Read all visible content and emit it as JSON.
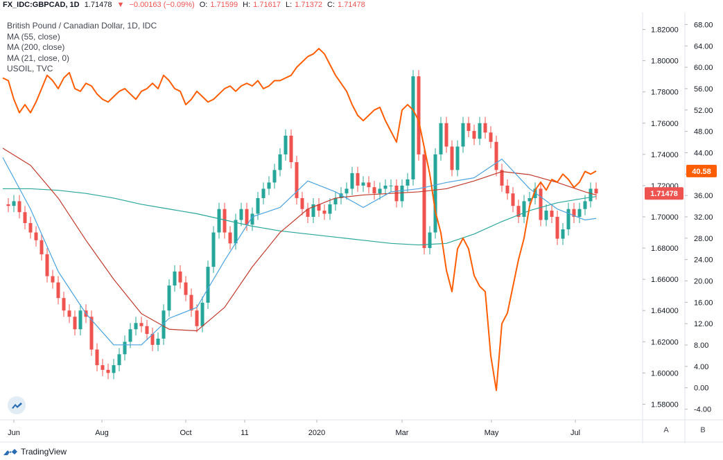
{
  "header": {
    "symbol": "FX_IDC:GBPCAD, 1D",
    "last": "1.71478",
    "arrow": "▼",
    "change": "−0.00163 (−0.09%)",
    "o_label": "O:",
    "o_val": "1.71599",
    "h_label": "H:",
    "h_val": "1.71617",
    "l_label": "L:",
    "l_val": "1.71372",
    "c_label": "C:",
    "c_val": "1.71478"
  },
  "legend": {
    "title": "British Pound / Canadian Dollar, 1D, IDC",
    "ma55": "MA (55, close)",
    "ma200": "MA (200, close)",
    "ma21": "MA (21, close, 0)",
    "overlay": "USOIL, TVC"
  },
  "colors": {
    "up": "#26a69a",
    "down": "#ef5350",
    "oil": "#ff5d00",
    "ma21": "#4aa3df",
    "ma55": "#c0392b",
    "ma200": "#26a69a",
    "axis_text": "#131722"
  },
  "scale_buttons": {
    "a": "A",
    "b": "B"
  },
  "footer": {
    "brand": "TradingView"
  },
  "chart_data": {
    "type": "line",
    "title": "British Pound / Canadian Dollar, 1D, IDC",
    "x_ticks": [
      "Jun",
      "Aug",
      "Oct",
      "11",
      "2020",
      "Mar",
      "May",
      "Jul"
    ],
    "y_left_ticks": [
      "1.82000",
      "1.80000",
      "1.78000",
      "1.76000",
      "1.74000",
      "1.72000",
      "1.70000",
      "1.68000",
      "1.66000",
      "1.64000",
      "1.62000",
      "1.60000",
      "1.58000"
    ],
    "y_right_ticks": [
      "68.00",
      "64.00",
      "60.00",
      "56.00",
      "52.00",
      "48.00",
      "44.00",
      "40.00",
      "36.00",
      "32.00",
      "28.00",
      "24.00",
      "20.00",
      "16.00",
      "12.00",
      "8.00",
      "4.00",
      "0.00",
      "-4.00"
    ],
    "price_axis_range": [
      1.57,
      1.83
    ],
    "oil_axis_range": [
      -6,
      70
    ],
    "last_price_label": "1.71478",
    "last_oil_label": "40.58",
    "series": [
      {
        "name": "GBPCAD",
        "kind": "close",
        "x": [
          0,
          8,
          16,
          24,
          32,
          40,
          48,
          56,
          64,
          72,
          80,
          88,
          96,
          104,
          112,
          120,
          128,
          136,
          144,
          152,
          160,
          168,
          176,
          184,
          192,
          200,
          208,
          216,
          224,
          232,
          240,
          248,
          256,
          264,
          272,
          280,
          288,
          296,
          304,
          312,
          320,
          328,
          336,
          344,
          352,
          360,
          368,
          376,
          384,
          392,
          400,
          408,
          416,
          424,
          432,
          440,
          448,
          456,
          464,
          472,
          480,
          488,
          496,
          504,
          512,
          520,
          528,
          536,
          544,
          552,
          560,
          568,
          576,
          584,
          592,
          600,
          608,
          616,
          624,
          632,
          640,
          648,
          656,
          664,
          672,
          680,
          688,
          696,
          704,
          712,
          720,
          728,
          736,
          744,
          752,
          760,
          768,
          776,
          784,
          792,
          800,
          808,
          816,
          824,
          832,
          840,
          848,
          856
        ],
        "values": [
          1.708,
          1.707,
          1.71,
          1.703,
          1.696,
          1.69,
          1.685,
          1.676,
          1.662,
          1.658,
          1.648,
          1.64,
          1.636,
          1.628,
          1.64,
          1.636,
          1.615,
          1.605,
          1.602,
          1.6,
          1.605,
          1.612,
          1.62,
          1.628,
          1.632,
          1.63,
          1.625,
          1.618,
          1.622,
          1.64,
          1.656,
          1.665,
          1.658,
          1.65,
          1.64,
          1.63,
          1.645,
          1.668,
          1.69,
          1.705,
          1.69,
          1.683,
          1.698,
          1.705,
          1.695,
          1.702,
          1.712,
          1.718,
          1.722,
          1.73,
          1.74,
          1.752,
          1.735,
          1.712,
          1.705,
          1.7,
          1.708,
          1.704,
          1.702,
          1.708,
          1.712,
          1.715,
          1.718,
          1.728,
          1.72,
          1.722,
          1.719,
          1.715,
          1.718,
          1.72,
          1.72,
          1.71,
          1.72,
          1.724,
          1.79,
          1.74,
          1.68,
          1.69,
          1.74,
          1.76,
          1.745,
          1.73,
          1.745,
          1.76,
          1.755,
          1.75,
          1.76,
          1.754,
          1.748,
          1.73,
          1.72,
          1.715,
          1.707,
          1.7,
          1.71,
          1.712,
          1.718,
          1.698,
          1.704,
          1.7,
          1.686,
          1.692,
          1.705,
          1.7,
          1.705,
          1.71,
          1.718,
          1.715
        ]
      },
      {
        "name": "MA (21, close, 0)",
        "x": [
          0,
          40,
          80,
          120,
          160,
          200,
          240,
          280,
          320,
          360,
          400,
          440,
          480,
          520,
          560,
          600,
          640,
          680,
          720,
          760,
          800,
          840,
          856
        ],
        "values": [
          1.738,
          1.705,
          1.665,
          1.638,
          1.618,
          1.618,
          1.635,
          1.642,
          1.672,
          1.7,
          1.706,
          1.723,
          1.716,
          1.706,
          1.716,
          1.718,
          1.722,
          1.725,
          1.737,
          1.718,
          1.705,
          1.698,
          1.699
        ]
      },
      {
        "name": "MA (55, close)",
        "x": [
          0,
          40,
          80,
          120,
          160,
          200,
          240,
          280,
          320,
          360,
          400,
          440,
          480,
          520,
          560,
          600,
          640,
          680,
          720,
          760,
          800,
          840,
          856
        ],
        "values": [
          1.744,
          1.733,
          1.712,
          1.685,
          1.66,
          1.638,
          1.628,
          1.627,
          1.642,
          1.668,
          1.69,
          1.705,
          1.712,
          1.714,
          1.715,
          1.716,
          1.718,
          1.723,
          1.729,
          1.727,
          1.722,
          1.716,
          1.714
        ]
      },
      {
        "name": "MA (200, close)",
        "x": [
          0,
          40,
          80,
          120,
          160,
          200,
          240,
          280,
          320,
          360,
          400,
          440,
          480,
          520,
          560,
          600,
          640,
          680,
          720,
          760,
          800,
          840,
          856
        ],
        "values": [
          1.718,
          1.718,
          1.717,
          1.715,
          1.712,
          1.708,
          1.705,
          1.702,
          1.698,
          1.694,
          1.691,
          1.689,
          1.687,
          1.685,
          1.683,
          1.682,
          1.683,
          1.689,
          1.697,
          1.704,
          1.709,
          1.712,
          1.713
        ]
      },
      {
        "name": "USOIL, TVC",
        "x": [
          0,
          8,
          16,
          24,
          32,
          40,
          48,
          56,
          64,
          72,
          80,
          88,
          96,
          104,
          112,
          120,
          128,
          136,
          144,
          152,
          160,
          168,
          176,
          184,
          192,
          200,
          208,
          216,
          224,
          232,
          240,
          248,
          256,
          264,
          272,
          280,
          288,
          296,
          304,
          312,
          320,
          328,
          336,
          344,
          352,
          360,
          368,
          376,
          384,
          392,
          400,
          408,
          416,
          424,
          432,
          440,
          448,
          456,
          464,
          472,
          480,
          488,
          496,
          504,
          512,
          520,
          528,
          536,
          544,
          552,
          560,
          568,
          576,
          584,
          592,
          600,
          608,
          616,
          624,
          632,
          640,
          648,
          656,
          664,
          672,
          680,
          688,
          696,
          704,
          712,
          720,
          728,
          736,
          744,
          752,
          760,
          768,
          776,
          784,
          792,
          800,
          808,
          816,
          824,
          832,
          840,
          848,
          856
        ],
        "values": [
          58.0,
          57.5,
          54.0,
          51.5,
          53.0,
          51.5,
          53.5,
          56.0,
          58.5,
          57.5,
          56.0,
          58.0,
          59.0,
          56.0,
          55.5,
          57.0,
          56.5,
          55.0,
          54.0,
          53.5,
          54.5,
          55.5,
          56.0,
          55.0,
          54.0,
          55.5,
          56.0,
          57.0,
          56.0,
          58.5,
          57.5,
          56.0,
          55.5,
          53.0,
          54.0,
          55.5,
          54.5,
          53.5,
          54.0,
          55.0,
          56.0,
          56.5,
          55.5,
          56.5,
          57.0,
          56.5,
          57.5,
          56.0,
          56.5,
          57.5,
          57.5,
          58.0,
          58.5,
          60.0,
          61.0,
          62.0,
          62.5,
          63.5,
          62.5,
          60.5,
          58.5,
          57.0,
          55.5,
          53.0,
          51.0,
          50.0,
          51.0,
          52.0,
          52.5,
          50.0,
          48.0,
          46.0,
          52.0,
          53.0,
          52.0,
          50.0,
          45.0,
          40.0,
          33.0,
          29.0,
          22.0,
          18.0,
          26.0,
          28.0,
          26.0,
          21.0,
          19.0,
          18.0,
          6.0,
          -0.5,
          12.0,
          14.0,
          19.0,
          24.0,
          28.0,
          34.0,
          37.0,
          38.5,
          37.0,
          39.0,
          38.5,
          40.0,
          39.0,
          37.5,
          38.5,
          40.5,
          40.0,
          40.58
        ]
      }
    ]
  }
}
